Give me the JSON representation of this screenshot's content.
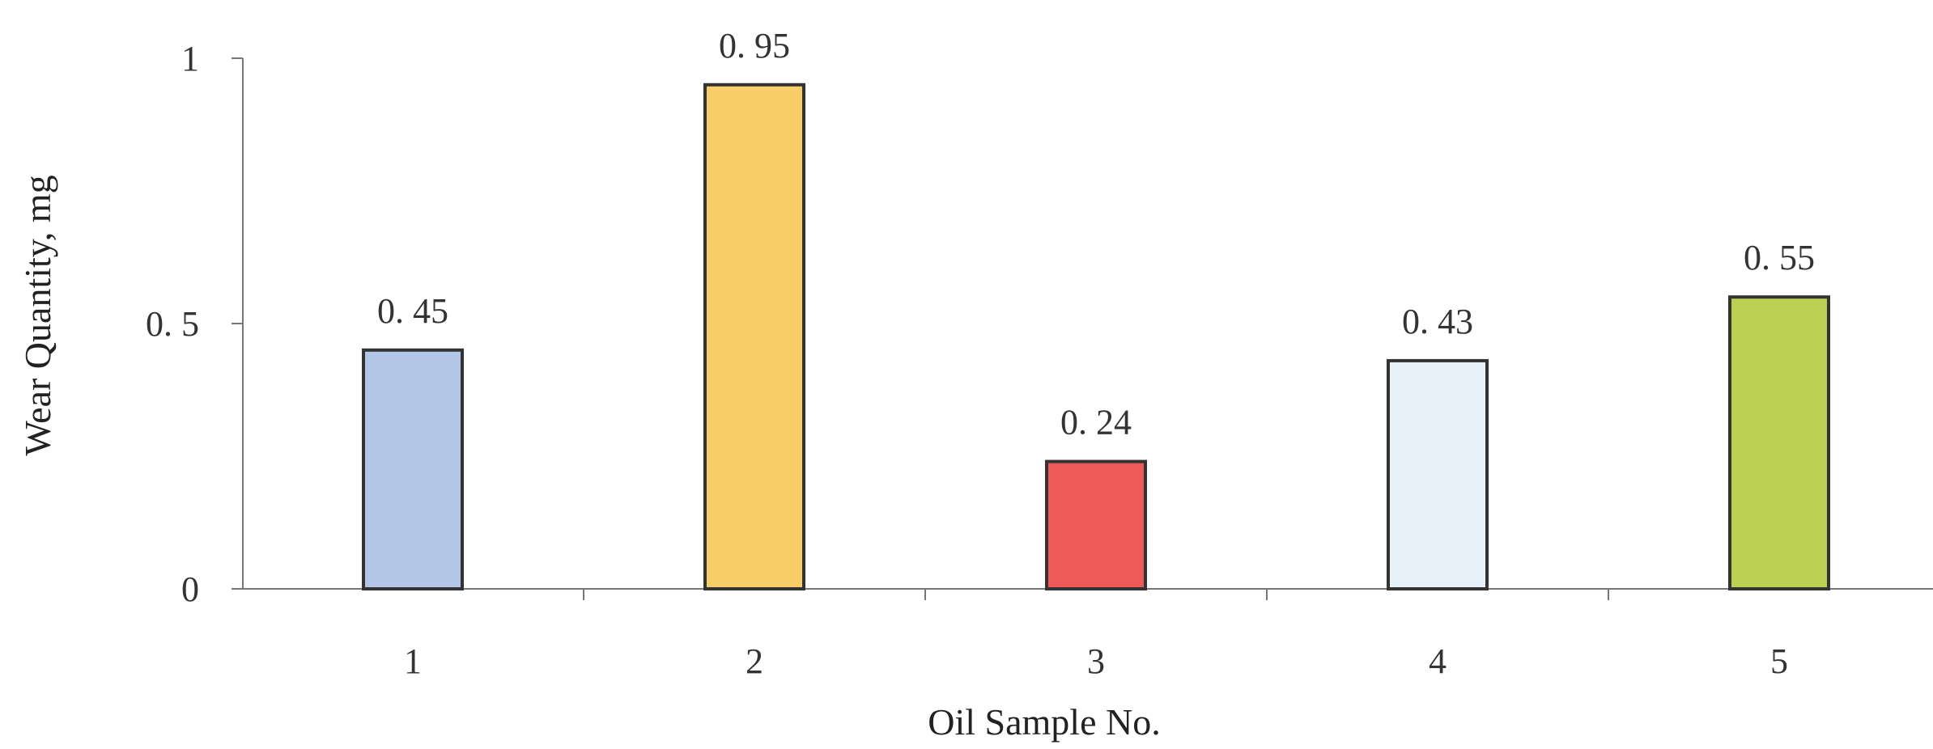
{
  "chart_data": {
    "type": "bar",
    "categories": [
      "1",
      "2",
      "3",
      "4",
      "5"
    ],
    "values": [
      0.45,
      0.95,
      0.24,
      0.43,
      0.55
    ],
    "data_labels": [
      "0. 45",
      "0. 95",
      "0. 24",
      "0. 43",
      "0. 55"
    ],
    "bar_colors": [
      "#b3c6e8",
      "#f7cd6a",
      "#ee5a57",
      "#e9f1f8",
      "#bcd152"
    ],
    "xlabel": "Oil Sample No.",
    "ylabel": "Wear Quantity, mg",
    "ylim": [
      0,
      1
    ],
    "yticks": [
      0,
      0.5,
      1
    ],
    "ytick_labels": [
      "0",
      "0. 5",
      "1"
    ],
    "grid": false,
    "legend": "none"
  }
}
